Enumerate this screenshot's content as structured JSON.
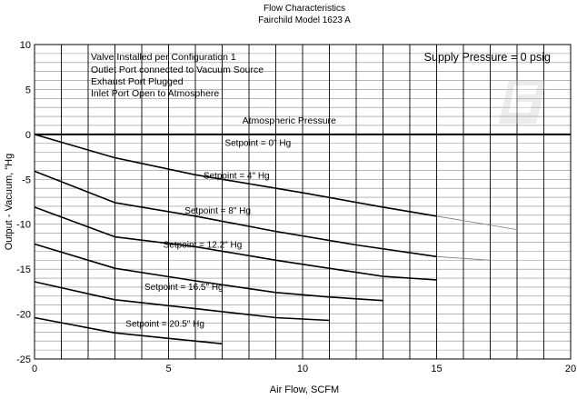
{
  "chart_data": {
    "type": "line",
    "title": "Flow Characteristics",
    "subtitle": "Fairchild Model 1623 A",
    "xlabel": "Air Flow, SCFM",
    "ylabel": "Output - Vacuum, \"Hg",
    "xlim": [
      0,
      20
    ],
    "ylim": [
      -25,
      10
    ],
    "xticks": [
      0,
      5,
      10,
      15,
      20
    ],
    "yticks": [
      -25,
      -20,
      -15,
      -10,
      -5,
      0,
      5,
      10
    ],
    "grid": true,
    "notes": [
      "Valve Installed per Configuration 1",
      "Outlet Port connected to Vacuum Source",
      "Exhaust Port Plugged",
      "Inlet Port Open to Atmosphere"
    ],
    "supply_label": "Supply Pressure = 0 psig",
    "reference_line": {
      "label": "Atmospheric Pressure",
      "y": 0
    },
    "series": [
      {
        "name": "Setpoint = 0\" Hg",
        "x": [
          0,
          3,
          6,
          10,
          13,
          15
        ],
        "y": [
          0,
          -2.6,
          -4.5,
          -6.5,
          -8.1,
          -9.1
        ],
        "ext_x": [
          15,
          18
        ],
        "ext_y": [
          -9.1,
          -10.6
        ]
      },
      {
        "name": "Setpoint = 4\" Hg",
        "x": [
          0,
          3,
          6,
          9,
          12,
          15
        ],
        "y": [
          -4.1,
          -7.6,
          -9.1,
          -10.8,
          -12.3,
          -13.6
        ],
        "ext_x": [
          15,
          17
        ],
        "ext_y": [
          -13.6,
          -14.0
        ]
      },
      {
        "name": "Setpoint = 8\" Hg",
        "x": [
          0,
          3,
          6,
          9,
          13,
          15
        ],
        "y": [
          -8.1,
          -11.4,
          -12.5,
          -14.0,
          -15.8,
          -16.2
        ],
        "ext_x": [],
        "ext_y": []
      },
      {
        "name": "Setpoint = 12.2\" Hg",
        "x": [
          0,
          3,
          6,
          9,
          11,
          13
        ],
        "y": [
          -12.2,
          -14.9,
          -16.3,
          -17.6,
          -18.1,
          -18.5
        ],
        "ext_x": [],
        "ext_y": []
      },
      {
        "name": "Setpoint = 16.5\" Hg",
        "x": [
          0,
          3,
          6,
          9,
          11
        ],
        "y": [
          -16.4,
          -18.4,
          -19.4,
          -20.4,
          -20.7
        ],
        "ext_x": [],
        "ext_y": []
      },
      {
        "name": "Setpoint = 20.5\" Hg",
        "x": [
          0,
          3,
          5,
          7
        ],
        "y": [
          -20.4,
          -22.1,
          -22.7,
          -23.3
        ],
        "ext_x": [],
        "ext_y": []
      }
    ]
  }
}
